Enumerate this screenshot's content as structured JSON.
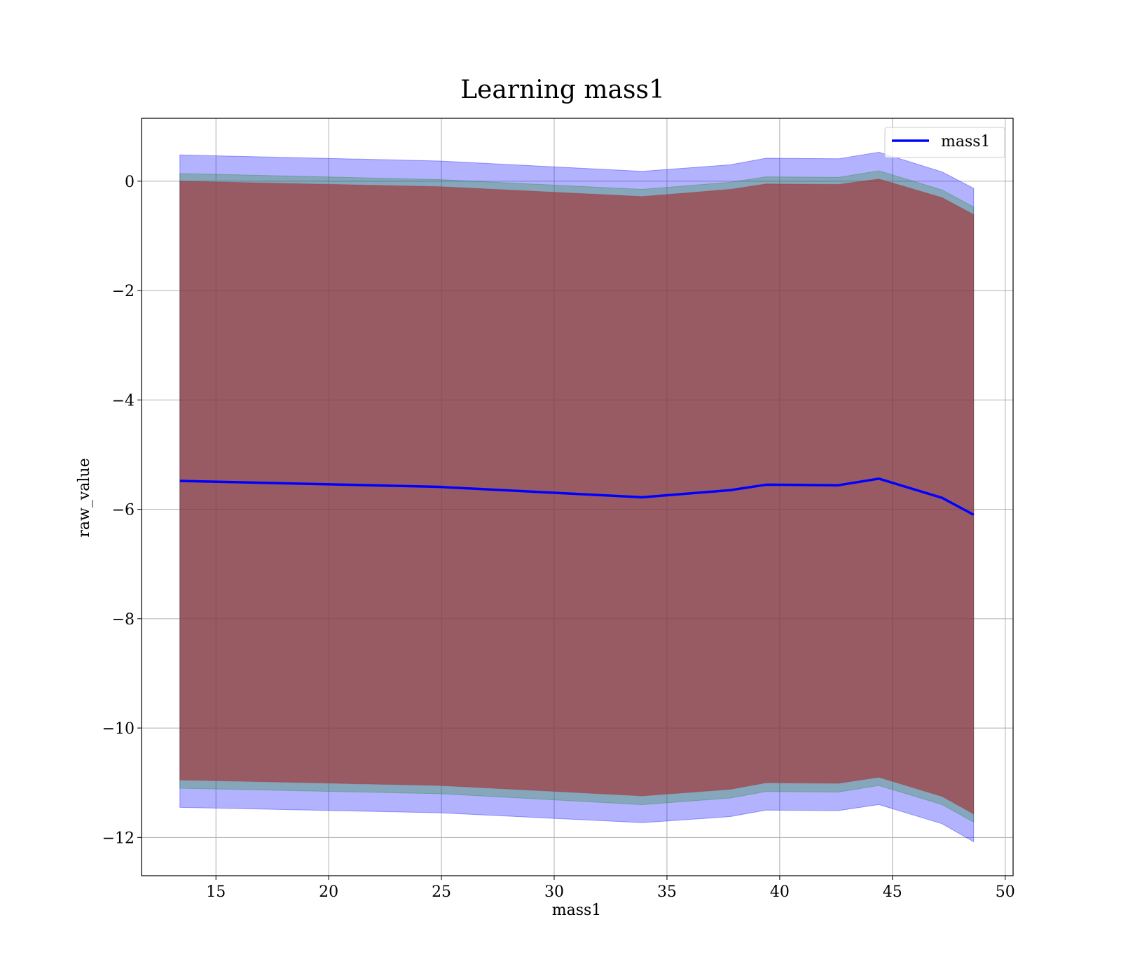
{
  "chart_data": {
    "type": "area",
    "title": "Learning mass1",
    "xlabel": "mass1",
    "ylabel": "raw_value",
    "xlim": [
      11.7,
      50.35
    ],
    "ylim": [
      -12.7,
      1.15
    ],
    "xticks": [
      15,
      20,
      25,
      30,
      35,
      40,
      45,
      50
    ],
    "yticks": [
      0,
      -2,
      -4,
      -6,
      -8,
      -10,
      -12
    ],
    "xtick_labels": [
      "15",
      "20",
      "25",
      "30",
      "35",
      "40",
      "45",
      "50"
    ],
    "ytick_labels": [
      "0",
      "−2",
      "−4",
      "−6",
      "−8",
      "−10",
      "−12"
    ],
    "grid": true,
    "legend_placement": "top-right",
    "x": [
      13.4,
      24.9,
      33.9,
      37.8,
      39.4,
      42.6,
      44.4,
      47.2,
      48.6
    ],
    "series": [
      {
        "name": "mass1",
        "color": "#0000ff",
        "values": [
          -5.48,
          -5.59,
          -5.78,
          -5.65,
          -5.55,
          -5.56,
          -5.44,
          -5.79,
          -6.1
        ]
      }
    ],
    "bands": [
      {
        "color": "#0000ff",
        "opacity": 0.3,
        "lower": [
          -11.45,
          -11.55,
          -11.73,
          -11.62,
          -11.5,
          -11.51,
          -11.4,
          -11.75,
          -12.08
        ],
        "upper": [
          0.48,
          0.37,
          0.18,
          0.3,
          0.42,
          0.41,
          0.53,
          0.17,
          -0.13
        ]
      },
      {
        "color": "#228b22",
        "opacity": 0.3,
        "lower": [
          -11.1,
          -11.2,
          -11.4,
          -11.28,
          -11.16,
          -11.17,
          -11.05,
          -11.4,
          -11.72
        ],
        "upper": [
          0.14,
          0.03,
          -0.15,
          -0.02,
          0.08,
          0.07,
          0.19,
          -0.16,
          -0.47
        ]
      },
      {
        "color": "#a52a2a",
        "opacity": 0.6,
        "lower": [
          -10.95,
          -11.05,
          -11.24,
          -11.12,
          -11.0,
          -11.01,
          -10.9,
          -11.25,
          -11.57
        ],
        "upper": [
          0.0,
          -0.1,
          -0.28,
          -0.15,
          -0.05,
          -0.06,
          0.04,
          -0.3,
          -0.61
        ]
      }
    ]
  }
}
